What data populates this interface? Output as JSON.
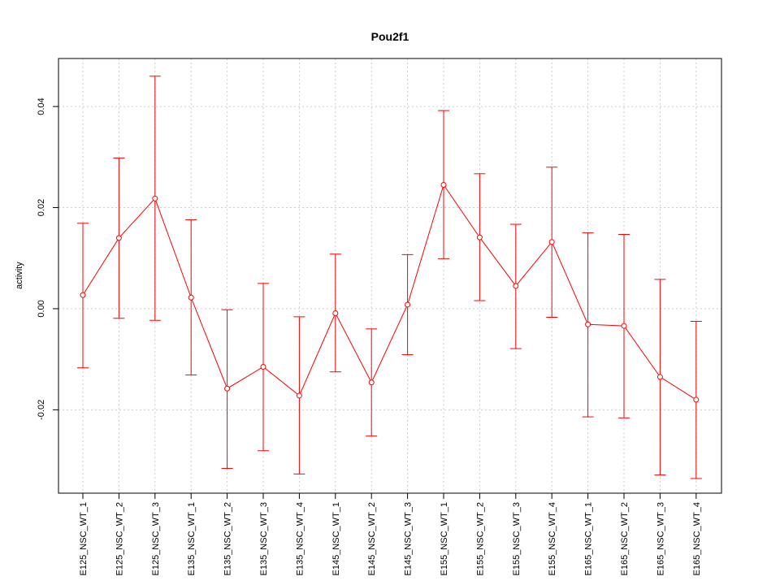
{
  "chart_data": {
    "type": "line",
    "title": "Pou2f1",
    "xlabel": "",
    "ylabel": "activity",
    "categories": [
      "E125_NSC_WT_1",
      "E125_NSC_WT_2",
      "E125_NSC_WT_3",
      "E135_NSC_WT_1",
      "E135_NSC_WT_2",
      "E135_NSC_WT_3",
      "E135_NSC_WT_4",
      "E145_NSC_WT_1",
      "E145_NSC_WT_2",
      "E145_NSC_WT_3",
      "E155_NSC_WT_1",
      "E155_NSC_WT_2",
      "E155_NSC_WT_3",
      "E155_NSC_WT_4",
      "E165_NSC_WT_1",
      "E165_NSC_WT_2",
      "E165_NSC_WT_3",
      "E165_NSC_WT_4"
    ],
    "values": [
      0.0027,
      0.014,
      0.0218,
      0.0022,
      -0.0158,
      -0.0115,
      -0.0172,
      -0.0009,
      -0.0146,
      0.0008,
      0.0245,
      0.0141,
      0.0045,
      0.0132,
      -0.0031,
      -0.0034,
      -0.0135,
      -0.018
    ],
    "lower": [
      -0.0117,
      -0.0019,
      -0.0023,
      -0.0131,
      -0.0316,
      -0.0281,
      -0.0327,
      -0.0125,
      -0.0252,
      -0.0091,
      0.0099,
      0.0016,
      -0.0079,
      -0.0017,
      -0.0214,
      -0.0216,
      -0.0329,
      -0.0336
    ],
    "upper": [
      0.0169,
      0.0298,
      0.046,
      0.0176,
      -0.0002,
      0.005,
      -0.0016,
      0.0108,
      -0.004,
      0.0107,
      0.0392,
      0.0267,
      0.0167,
      0.028,
      0.015,
      0.0147,
      0.0058,
      -0.0025
    ],
    "ylim": [
      -0.0365,
      0.0495
    ],
    "yticks": [
      -0.02,
      0.0,
      0.02,
      0.04
    ],
    "ytick_labels": [
      "-0.02",
      "0.00",
      "0.02",
      "0.04"
    ],
    "grid": true,
    "series_color": "#ff0000"
  }
}
